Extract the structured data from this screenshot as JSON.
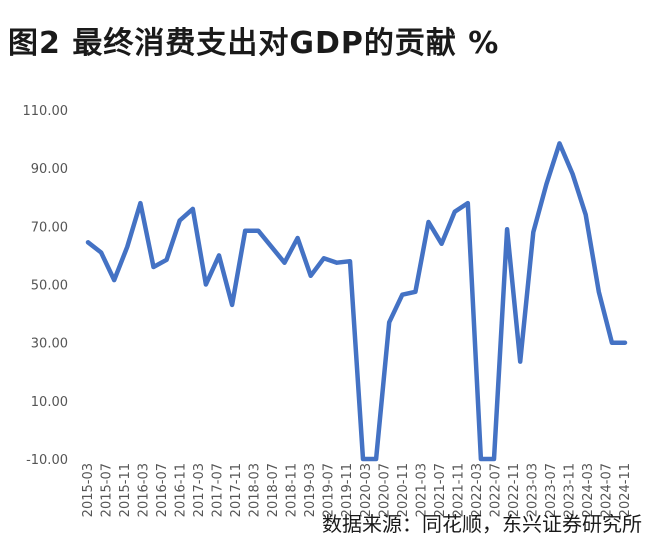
{
  "title": "图2  最终消费支出对GDP的贡献  %",
  "source": "数据来源：同花顺，东兴证券研究所",
  "chart_data": {
    "type": "line",
    "color": "#4472C4",
    "ylim": [
      -10,
      110
    ],
    "yticks": [
      "110.00",
      "90.00",
      "70.00",
      "50.00",
      "30.00",
      "10.00",
      "-10.00"
    ],
    "ytick_values": [
      110,
      90,
      70,
      50,
      30,
      10,
      -10
    ],
    "x_tick_labels": [
      "2015-03",
      "2015-07",
      "2015-11",
      "2016-03",
      "2016-07",
      "2016-11",
      "2017-03",
      "2017-07",
      "2017-11",
      "2018-03",
      "2018-07",
      "2018-11",
      "2019-03",
      "2019-07",
      "2019-11",
      "2020-03",
      "2020-07",
      "2020-11",
      "2021-03",
      "2021-07",
      "2021-11",
      "2022-03",
      "2022-07",
      "2022-11",
      "2023-03",
      "2023-07",
      "2023-11",
      "2024-03",
      "2024-07",
      "2024-11"
    ],
    "series": [
      {
        "values": [
          64.5,
          61,
          51.5,
          63,
          78,
          56,
          58.5,
          72,
          76,
          50,
          60,
          43,
          68.5,
          68.5,
          63,
          57.5,
          66,
          53,
          59,
          57.5,
          58,
          -10,
          -10,
          37,
          46.5,
          47.5,
          71.5,
          64,
          75,
          78,
          -10,
          -10,
          69,
          23.5,
          68,
          84.5,
          98.5,
          88,
          74,
          47.5,
          30,
          30
        ]
      }
    ]
  }
}
